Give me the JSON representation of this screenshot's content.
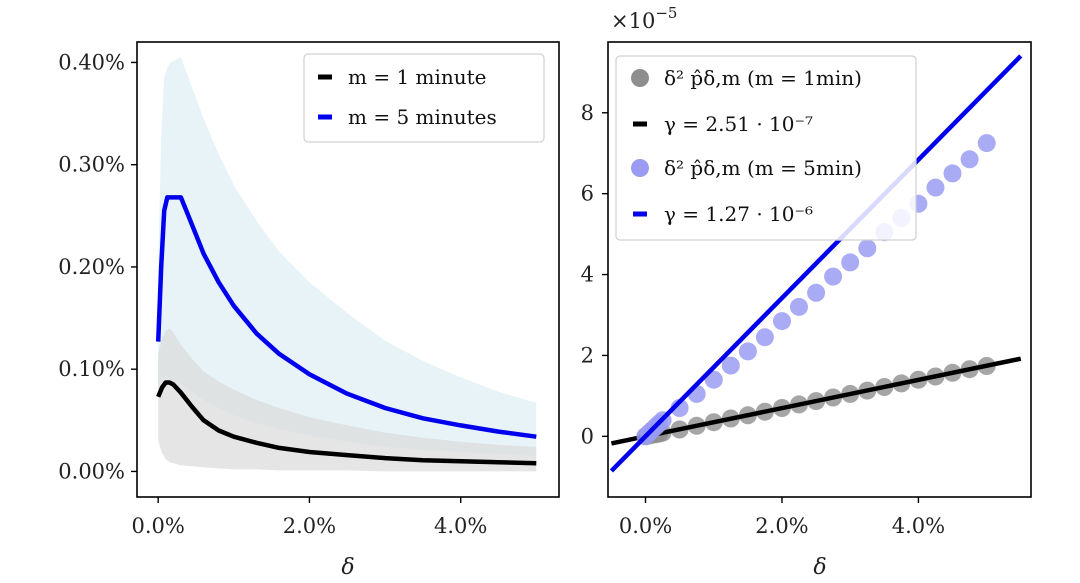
{
  "chart_data": [
    {
      "type": "line",
      "panel": "left",
      "xlabel": "δ",
      "ylabel": "",
      "xlim": [
        -0.28,
        5.3
      ],
      "ylim": [
        -0.025,
        0.42
      ],
      "x_ticks": [
        0.0,
        2.0,
        4.0
      ],
      "x_tick_labels": [
        "0.0%",
        "2.0%",
        "4.0%"
      ],
      "y_ticks": [
        0.0,
        0.1,
        0.2,
        0.3,
        0.4
      ],
      "y_tick_labels": [
        "0.00%",
        "0.10%",
        "0.20%",
        "0.30%",
        "0.40%"
      ],
      "legend_position": "top-right",
      "series": [
        {
          "name": "m = 1 minute",
          "legend_label": "m = 1 minute",
          "color": "#000000",
          "band_color": "#dcdcdc",
          "x": [
            0.0,
            0.05,
            0.1,
            0.15,
            0.2,
            0.3,
            0.45,
            0.6,
            0.8,
            1.0,
            1.3,
            1.6,
            2.0,
            2.5,
            3.0,
            3.5,
            4.0,
            4.5,
            5.0
          ],
          "values": [
            0.073,
            0.082,
            0.087,
            0.087,
            0.085,
            0.077,
            0.063,
            0.05,
            0.04,
            0.034,
            0.028,
            0.023,
            0.019,
            0.016,
            0.013,
            0.011,
            0.01,
            0.009,
            0.008
          ],
          "band_upper": [
            0.115,
            0.13,
            0.138,
            0.14,
            0.136,
            0.124,
            0.11,
            0.098,
            0.088,
            0.08,
            0.07,
            0.062,
            0.053,
            0.045,
            0.038,
            0.033,
            0.029,
            0.026,
            0.024
          ],
          "band_lower": [
            0.03,
            0.018,
            0.012,
            0.009,
            0.008,
            0.006,
            0.005,
            0.004,
            0.003,
            0.002,
            0.002,
            0.001,
            0.001,
            0.001,
            0.0,
            0.0,
            0.0,
            0.0,
            0.0
          ]
        },
        {
          "name": "m = 5 minutes",
          "legend_label": "m = 5 minutes",
          "color": "#0000ee",
          "band_color": "#e8f3f8",
          "x": [
            0.0,
            0.04,
            0.08,
            0.12,
            0.16,
            0.3,
            0.4,
            0.6,
            0.8,
            1.0,
            1.3,
            1.6,
            2.0,
            2.5,
            3.0,
            3.5,
            4.0,
            4.5,
            5.0
          ],
          "values": [
            0.127,
            0.2,
            0.255,
            0.268,
            0.268,
            0.268,
            0.25,
            0.213,
            0.185,
            0.162,
            0.135,
            0.115,
            0.095,
            0.076,
            0.062,
            0.052,
            0.045,
            0.039,
            0.034
          ],
          "band_upper": [
            0.2,
            0.33,
            0.385,
            0.395,
            0.4,
            0.405,
            0.385,
            0.345,
            0.31,
            0.28,
            0.245,
            0.215,
            0.185,
            0.155,
            0.128,
            0.108,
            0.092,
            0.078,
            0.067
          ],
          "band_lower": [
            0.08,
            0.09,
            0.092,
            0.092,
            0.09,
            0.085,
            0.08,
            0.07,
            0.062,
            0.055,
            0.047,
            0.041,
            0.035,
            0.029,
            0.024,
            0.021,
            0.019,
            0.017,
            0.015
          ]
        }
      ]
    },
    {
      "type": "scatter",
      "panel": "right",
      "xlabel": "δ",
      "ylabel": "",
      "offset_text": "×10",
      "offset_exponent": "−5",
      "xlim": [
        -0.55,
        5.65
      ],
      "ylim": [
        -1.5,
        9.75
      ],
      "x_ticks": [
        0.0,
        2.0,
        4.0
      ],
      "x_tick_labels": [
        "0.0%",
        "2.0%",
        "4.0%"
      ],
      "y_ticks": [
        0,
        2,
        4,
        6,
        8
      ],
      "y_tick_labels": [
        "0",
        "2",
        "4",
        "6",
        "8"
      ],
      "legend_position": "top-left",
      "scatter_x": [
        0.0,
        0.05,
        0.1,
        0.15,
        0.2,
        0.25,
        0.5,
        0.75,
        1.0,
        1.25,
        1.5,
        1.75,
        2.0,
        2.25,
        2.5,
        2.75,
        3.0,
        3.25,
        3.5,
        3.75,
        4.0,
        4.25,
        4.5,
        4.75,
        5.0
      ],
      "series": [
        {
          "name": "δ² p̂δ,m (m = 1min)",
          "kind": "scatter",
          "color": "#8e8e8e",
          "values": [
            0.0,
            0.02,
            0.04,
            0.05,
            0.07,
            0.09,
            0.17,
            0.26,
            0.35,
            0.44,
            0.52,
            0.61,
            0.7,
            0.79,
            0.87,
            0.96,
            1.05,
            1.13,
            1.22,
            1.31,
            1.4,
            1.48,
            1.57,
            1.66,
            1.74
          ]
        },
        {
          "name": "γ = 2.51 · 10⁻⁷",
          "kind": "line",
          "color": "#000000",
          "slope": 0.349,
          "x_range": [
            -0.5,
            5.5
          ]
        },
        {
          "name": "δ² p̂δ,m (m = 5min)",
          "kind": "scatter",
          "color": "#9a9cf2",
          "values": [
            0.0,
            0.08,
            0.16,
            0.24,
            0.32,
            0.4,
            0.7,
            1.05,
            1.4,
            1.75,
            2.1,
            2.45,
            2.85,
            3.2,
            3.55,
            3.95,
            4.3,
            4.65,
            5.05,
            5.4,
            5.75,
            6.15,
            6.5,
            6.85,
            7.25
          ]
        },
        {
          "name": "γ = 1.27 · 10⁻⁶",
          "kind": "line",
          "color": "#0000ee",
          "slope": 1.71,
          "x_range": [
            -0.5,
            5.5
          ]
        }
      ]
    }
  ]
}
